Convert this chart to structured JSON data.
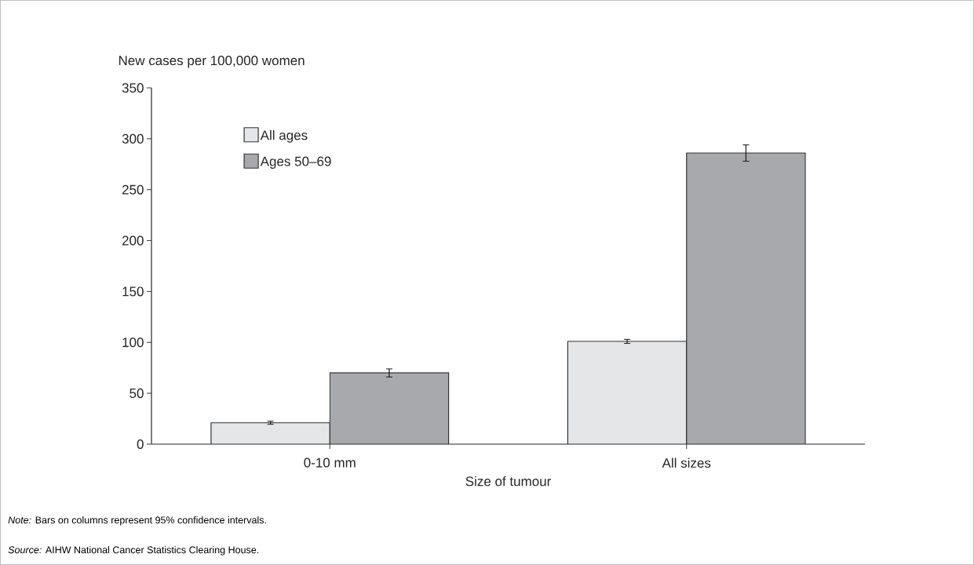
{
  "chart_data": {
    "type": "bar",
    "ylabel": "New cases per 100,000 women",
    "xlabel": "Size of tumour",
    "categories": [
      "0-10 mm",
      "All sizes"
    ],
    "series": [
      {
        "name": "All ages",
        "color": "#e5e6e8",
        "values": [
          21,
          101
        ],
        "errors": [
          1.5,
          2
        ]
      },
      {
        "name": "Ages 50–69",
        "color": "#a8a9ad",
        "values": [
          70,
          286
        ],
        "errors": [
          4,
          8
        ]
      }
    ],
    "ylim": [
      0,
      350
    ],
    "yticks": [
      0,
      50,
      100,
      150,
      200,
      250,
      300,
      350
    ],
    "grid": false,
    "legend": "top left",
    "annotations": [
      "*Note:* Bars on columns represent 95% confidence intervals.",
      "*Source:* AIHW National Cancer Statistics Clearing House."
    ]
  }
}
